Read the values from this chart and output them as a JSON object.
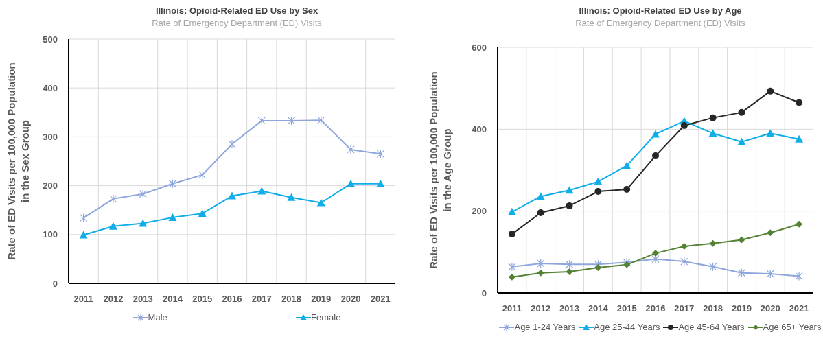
{
  "chart_data": [
    {
      "type": "line",
      "title": "Illinois: Opioid-Related ED Use by Sex",
      "subtitle": "Rate of Emergency Department (ED) Visits",
      "ylabel": "Rate of ED Visits per 100,000 Population\nin the Sex Group",
      "categories": [
        "2011",
        "2012",
        "2013",
        "2014",
        "2015",
        "2016",
        "2017",
        "2018",
        "2019",
        "2020",
        "2021"
      ],
      "series": [
        {
          "name": "Male",
          "color": "#8fa6dc",
          "marker": "cross",
          "values": [
            134,
            173,
            183,
            204,
            222,
            285,
            333,
            333,
            334,
            274,
            265
          ]
        },
        {
          "name": "Female",
          "color": "#10aee8",
          "marker": "triangle",
          "values": [
            99,
            117,
            123,
            135,
            143,
            179,
            189,
            176,
            165,
            204,
            204
          ]
        }
      ],
      "ylim": [
        0,
        500
      ],
      "yticks": [
        0,
        100,
        200,
        300,
        400,
        500
      ],
      "grid": true,
      "legend": "bottom"
    },
    {
      "type": "line",
      "title": "Illinois: Opioid-Related ED Use by Age",
      "subtitle": "Rate of Emergency Department (ED) Visits",
      "ylabel": "Rate of ED Visits per 100,000 Population\nin the Age Group",
      "categories": [
        "2011",
        "2012",
        "2013",
        "2014",
        "2015",
        "2016",
        "2017",
        "2018",
        "2019",
        "2020",
        "2021"
      ],
      "series": [
        {
          "name": "Age 1-24 Years",
          "color": "#8fa6dc",
          "marker": "cross",
          "values": [
            64,
            72,
            70,
            70,
            75,
            83,
            77,
            64,
            49,
            47,
            41
          ]
        },
        {
          "name": "Age 25-44 Years",
          "color": "#10aee8",
          "marker": "triangle",
          "values": [
            198,
            236,
            251,
            272,
            311,
            388,
            420,
            390,
            369,
            390,
            376
          ]
        },
        {
          "name": "Age 45-64 Years",
          "color": "#262626",
          "marker": "circle",
          "values": [
            144,
            196,
            213,
            248,
            253,
            335,
            409,
            428,
            441,
            493,
            465
          ]
        },
        {
          "name": "Age 65+ Years",
          "color": "#548235",
          "marker": "diamond",
          "values": [
            39,
            49,
            52,
            62,
            69,
            97,
            114,
            121,
            130,
            147,
            168
          ]
        }
      ],
      "ylim": [
        0,
        600
      ],
      "yticks": [
        0,
        200,
        400,
        600
      ],
      "grid": true,
      "legend": "bottom"
    }
  ]
}
